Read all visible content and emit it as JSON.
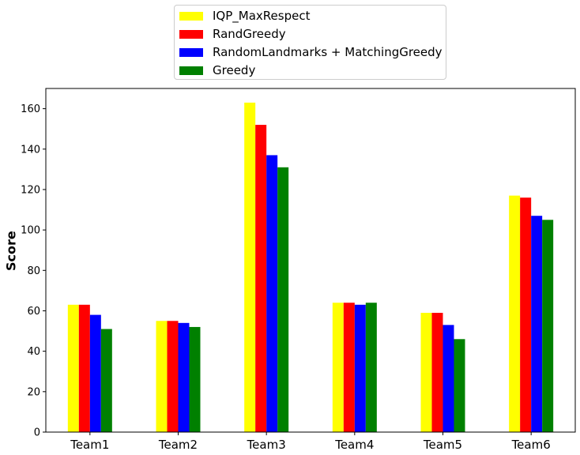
{
  "chart_data": {
    "type": "bar",
    "title": "",
    "xlabel": "",
    "ylabel": "Score",
    "ylim": [
      0,
      170
    ],
    "yticks": [
      0,
      20,
      40,
      60,
      80,
      100,
      120,
      140,
      160
    ],
    "categories": [
      "Team1",
      "Team2",
      "Team3",
      "Team4",
      "Team5",
      "Team6"
    ],
    "series": [
      {
        "name": "IQP_MaxRespect",
        "color": "#ffff00",
        "values": [
          63,
          55,
          163,
          64,
          59,
          117
        ]
      },
      {
        "name": "RandGreedy",
        "color": "#ff0000",
        "values": [
          63,
          55,
          152,
          64,
          59,
          116
        ]
      },
      {
        "name": "RandomLandmarks + MatchingGreedy",
        "color": "#0000ff",
        "values": [
          58,
          54,
          137,
          63,
          53,
          107
        ]
      },
      {
        "name": "Greedy",
        "color": "#008000",
        "values": [
          51,
          52,
          131,
          64,
          46,
          105
        ]
      }
    ],
    "legend_position": "top-center",
    "grid": false
  }
}
